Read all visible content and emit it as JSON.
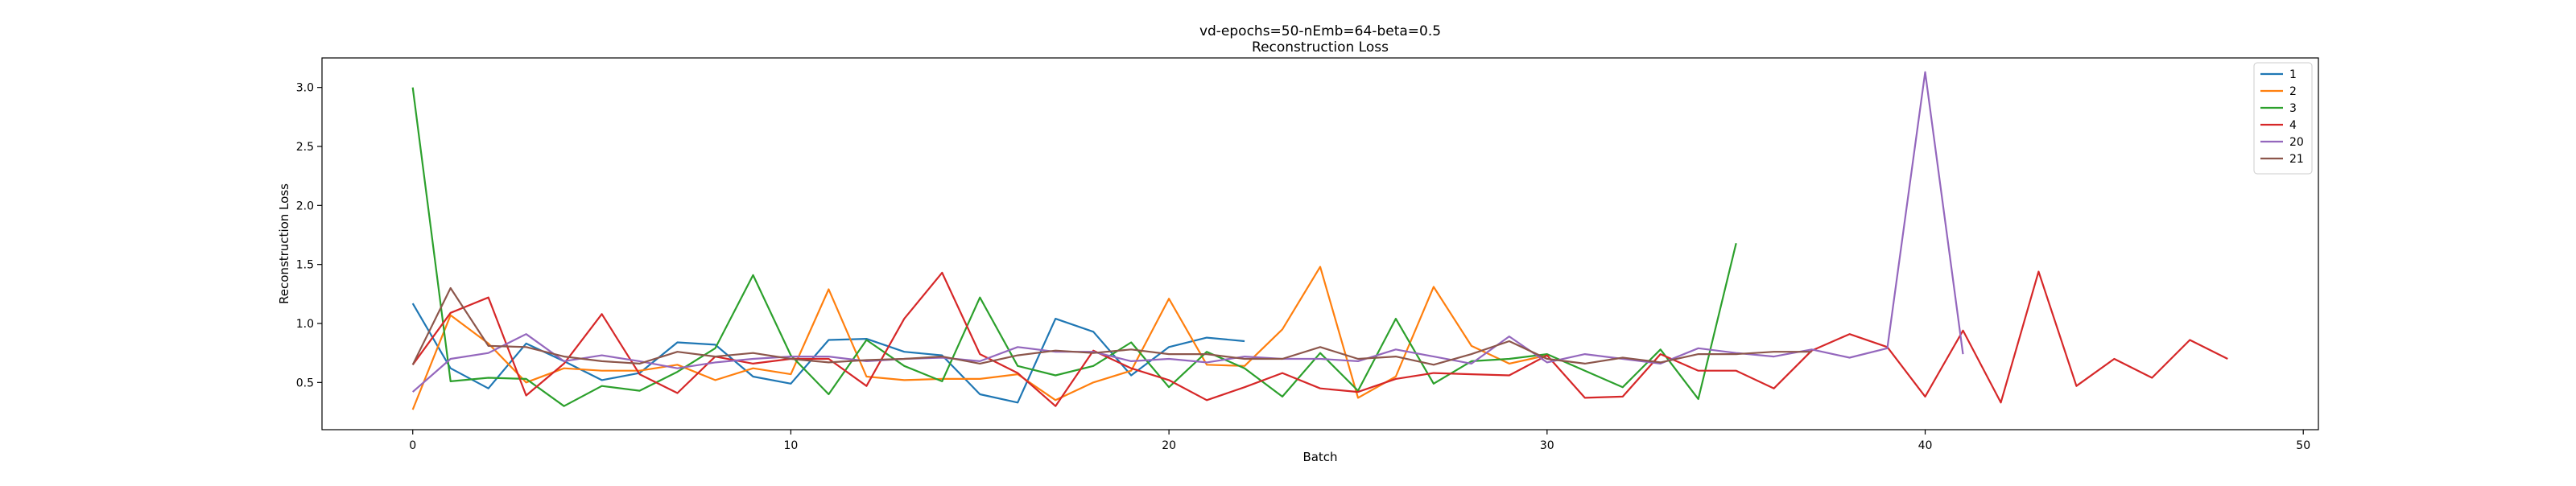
{
  "chart_data": {
    "type": "line",
    "title": "vd-epochs=50-nEmb=64-beta=0.5",
    "subtitle": "Reconstruction Loss",
    "xlabel": "Batch",
    "ylabel": "Reconstruction Loss",
    "xlim": [
      -2.4,
      50.4
    ],
    "ylim": [
      0.1,
      3.25
    ],
    "xticks": [
      0,
      10,
      20,
      30,
      40,
      50
    ],
    "yticks": [
      0.5,
      1.0,
      1.5,
      2.0,
      2.5,
      3.0
    ],
    "xtick_labels": [
      "0",
      "10",
      "20",
      "30",
      "40",
      "50"
    ],
    "ytick_labels": [
      "0.5",
      "1.0",
      "1.5",
      "2.0",
      "2.5",
      "3.0"
    ],
    "grid": false,
    "legend_position": "top-right",
    "series": [
      {
        "name": "1",
        "color": "#1f77b4",
        "x": [
          0,
          1,
          2,
          3,
          4,
          5,
          6,
          7,
          8,
          9,
          10,
          11,
          12,
          13,
          14,
          15,
          16,
          17,
          18,
          19,
          20,
          21,
          22
        ],
        "y": [
          1.17,
          0.62,
          0.45,
          0.83,
          0.68,
          0.52,
          0.58,
          0.84,
          0.82,
          0.55,
          0.49,
          0.86,
          0.87,
          0.76,
          0.73,
          0.4,
          0.33,
          1.04,
          0.93,
          0.56,
          0.8,
          0.88,
          0.85
        ]
      },
      {
        "name": "2",
        "color": "#ff7f0e",
        "x": [
          0,
          1,
          2,
          3,
          4,
          5,
          6,
          7,
          8,
          9,
          10,
          11,
          12,
          13,
          14,
          15,
          16,
          17,
          18,
          19,
          20,
          21,
          22,
          23,
          24,
          25,
          26,
          27,
          28,
          29,
          30
        ],
        "y": [
          0.27,
          1.07,
          0.83,
          0.5,
          0.62,
          0.6,
          0.6,
          0.65,
          0.52,
          0.62,
          0.57,
          1.29,
          0.55,
          0.52,
          0.53,
          0.53,
          0.57,
          0.35,
          0.5,
          0.6,
          1.21,
          0.65,
          0.64,
          0.95,
          1.48,
          0.37,
          0.55,
          1.31,
          0.81,
          0.66,
          0.73
        ]
      },
      {
        "name": "3",
        "color": "#2ca02c",
        "x": [
          0,
          1,
          2,
          3,
          4,
          5,
          6,
          7,
          8,
          9,
          10,
          11,
          12,
          13,
          14,
          15,
          16,
          17,
          18,
          19,
          20,
          21,
          22,
          23,
          24,
          25,
          26,
          27,
          28,
          29,
          30,
          31,
          32,
          33,
          34,
          35
        ],
        "y": [
          3.0,
          0.51,
          0.54,
          0.53,
          0.3,
          0.47,
          0.43,
          0.59,
          0.79,
          1.41,
          0.73,
          0.4,
          0.86,
          0.64,
          0.51,
          1.22,
          0.64,
          0.56,
          0.64,
          0.84,
          0.46,
          0.76,
          0.62,
          0.38,
          0.75,
          0.43,
          1.04,
          0.49,
          0.68,
          0.7,
          0.74,
          0.6,
          0.46,
          0.78,
          0.36,
          1.68
        ]
      },
      {
        "name": "4",
        "color": "#d62728",
        "x": [
          0,
          1,
          2,
          3,
          4,
          5,
          6,
          7,
          8,
          9,
          10,
          11,
          12,
          13,
          14,
          15,
          16,
          17,
          18,
          19,
          20,
          21,
          22,
          23,
          24,
          25,
          26,
          27,
          28,
          29,
          30,
          31,
          32,
          33,
          34,
          35,
          36,
          37,
          38,
          39,
          40,
          41,
          42,
          43,
          44,
          45,
          46,
          47,
          48
        ],
        "y": [
          0.65,
          1.09,
          1.22,
          0.39,
          0.66,
          1.08,
          0.57,
          0.41,
          0.72,
          0.66,
          0.7,
          0.7,
          0.47,
          1.04,
          1.43,
          0.74,
          0.58,
          0.3,
          0.77,
          0.62,
          0.52,
          0.35,
          0.46,
          0.58,
          0.45,
          0.42,
          0.53,
          0.58,
          0.57,
          0.56,
          0.73,
          0.37,
          0.38,
          0.74,
          0.6,
          0.6,
          0.45,
          0.77,
          0.91,
          0.8,
          0.38,
          0.94,
          0.33,
          1.44,
          0.47,
          0.7,
          0.54,
          0.86,
          0.7
        ]
      },
      {
        "name": "20",
        "color": "#9467bd",
        "x": [
          0,
          1,
          2,
          3,
          4,
          5,
          6,
          7,
          8,
          9,
          10,
          11,
          12,
          13,
          14,
          15,
          16,
          17,
          18,
          19,
          20,
          21,
          22,
          23,
          24,
          25,
          26,
          27,
          28,
          29,
          30,
          31,
          32,
          33,
          34,
          35,
          36,
          37,
          38,
          39,
          40,
          41
        ],
        "y": [
          0.42,
          0.7,
          0.75,
          0.91,
          0.68,
          0.73,
          0.68,
          0.62,
          0.67,
          0.7,
          0.72,
          0.72,
          0.68,
          0.7,
          0.71,
          0.68,
          0.8,
          0.76,
          0.76,
          0.68,
          0.7,
          0.67,
          0.72,
          0.7,
          0.7,
          0.68,
          0.78,
          0.72,
          0.66,
          0.89,
          0.67,
          0.74,
          0.7,
          0.66,
          0.79,
          0.75,
          0.72,
          0.78,
          0.71,
          0.79,
          3.13,
          0.74
        ]
      },
      {
        "name": "21",
        "color": "#8c564b",
        "x": [
          0,
          1,
          2,
          3,
          4,
          5,
          6,
          7,
          8,
          9,
          10,
          11,
          12,
          13,
          14,
          15,
          16,
          17,
          18,
          19,
          20,
          21,
          22,
          23,
          24,
          25,
          26,
          27,
          28,
          29,
          30,
          31,
          32,
          33,
          34,
          35,
          36,
          37
        ],
        "y": [
          0.65,
          1.3,
          0.81,
          0.8,
          0.72,
          0.68,
          0.66,
          0.76,
          0.72,
          0.75,
          0.7,
          0.67,
          0.69,
          0.7,
          0.72,
          0.66,
          0.73,
          0.77,
          0.75,
          0.78,
          0.74,
          0.74,
          0.7,
          0.7,
          0.8,
          0.7,
          0.72,
          0.65,
          0.74,
          0.85,
          0.7,
          0.66,
          0.71,
          0.67,
          0.74,
          0.74,
          0.76,
          0.76
        ]
      }
    ]
  }
}
